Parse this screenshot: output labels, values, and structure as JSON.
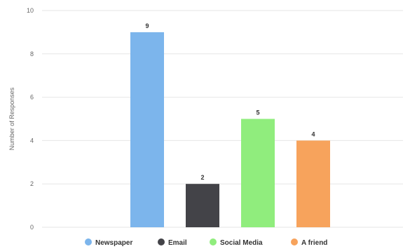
{
  "chart_data": {
    "type": "bar",
    "title": "",
    "xlabel": "",
    "ylabel": "Number of Responses",
    "ylim": [
      0,
      10
    ],
    "yticks": [
      0,
      2,
      4,
      6,
      8,
      10
    ],
    "grid": true,
    "legend_position": "bottom",
    "categories": [
      "Newspaper",
      "Email",
      "Social Media",
      "A friend"
    ],
    "values": [
      9,
      2,
      5,
      4
    ],
    "colors": [
      "#7cb5ec",
      "#434348",
      "#90ed7d",
      "#f7a35c"
    ]
  }
}
